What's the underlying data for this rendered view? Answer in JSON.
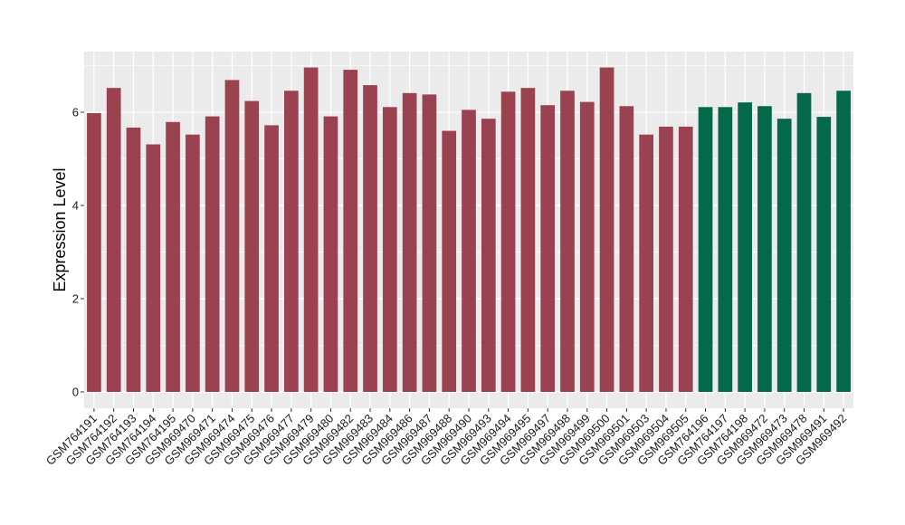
{
  "chart_data": {
    "type": "bar",
    "ylabel": "Expression Level",
    "xlabel": "",
    "ylim": [
      -0.35,
      7.3
    ],
    "yticks": [
      0,
      2,
      4,
      6
    ],
    "grid": true,
    "categories": [
      "GSM764191",
      "GSM764192",
      "GSM764193",
      "GSM764194",
      "GSM764195",
      "GSM969470",
      "GSM969471",
      "GSM969474",
      "GSM969475",
      "GSM969476",
      "GSM969477",
      "GSM969479",
      "GSM969480",
      "GSM969482",
      "GSM969483",
      "GSM969484",
      "GSM969486",
      "GSM969487",
      "GSM969488",
      "GSM969490",
      "GSM969493",
      "GSM969494",
      "GSM969495",
      "GSM969497",
      "GSM969498",
      "GSM969499",
      "GSM969500",
      "GSM969501",
      "GSM969503",
      "GSM969504",
      "GSM969505",
      "GSM764196",
      "GSM764197",
      "GSM764198",
      "GSM969472",
      "GSM969473",
      "GSM969478",
      "GSM969491",
      "GSM969492"
    ],
    "values": [
      5.98,
      6.52,
      5.67,
      5.31,
      5.79,
      5.52,
      5.91,
      6.69,
      6.24,
      5.72,
      6.46,
      6.96,
      5.91,
      6.91,
      6.58,
      6.11,
      6.41,
      6.38,
      5.6,
      6.05,
      5.86,
      6.44,
      6.52,
      6.15,
      6.46,
      6.22,
      6.96,
      6.13,
      5.52,
      5.69,
      5.69,
      6.11,
      6.11,
      6.21,
      6.13,
      5.86,
      6.41,
      5.9,
      6.46
    ],
    "groups": [
      "g1",
      "g1",
      "g1",
      "g1",
      "g1",
      "g1",
      "g1",
      "g1",
      "g1",
      "g1",
      "g1",
      "g1",
      "g1",
      "g1",
      "g1",
      "g1",
      "g1",
      "g1",
      "g1",
      "g1",
      "g1",
      "g1",
      "g1",
      "g1",
      "g1",
      "g1",
      "g1",
      "g1",
      "g1",
      "g1",
      "g1",
      "g2",
      "g2",
      "g2",
      "g2",
      "g2",
      "g2",
      "g2",
      "g2"
    ],
    "colors": {
      "g1": "#9a4250",
      "g2": "#03694a",
      "panel": "#ebebeb",
      "grid": "#ffffff"
    }
  }
}
